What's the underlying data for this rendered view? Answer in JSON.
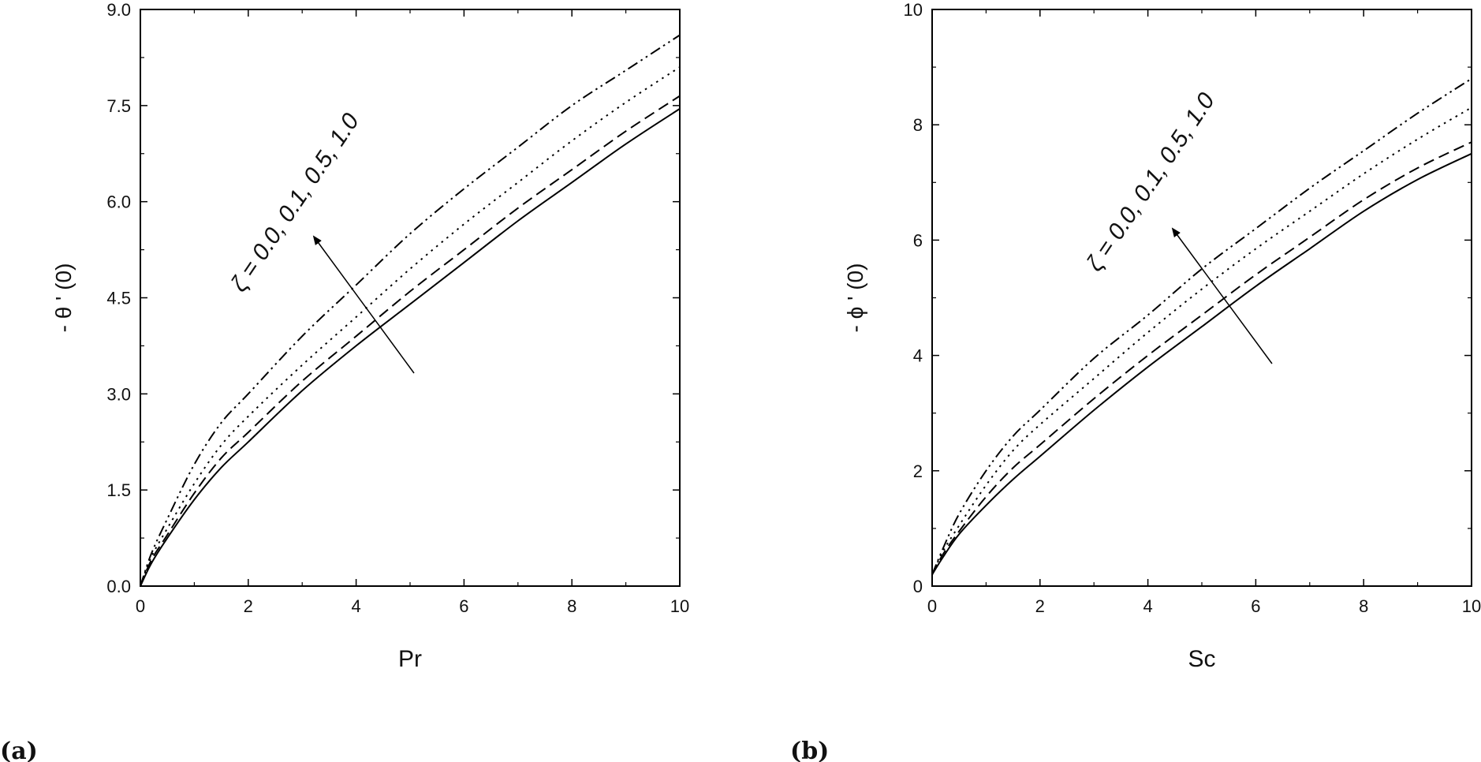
{
  "chart_data": [
    {
      "panel": "(a)",
      "type": "line",
      "xlabel": "Pr",
      "ylabel": "- θ ' (0)",
      "xlim": [
        0,
        10
      ],
      "ylim": [
        0,
        9
      ],
      "xticks": [
        0,
        2,
        4,
        6,
        8,
        10
      ],
      "yticks": [
        0.0,
        1.5,
        3.0,
        4.5,
        6.0,
        7.5,
        9.0
      ],
      "ytick_labels": [
        "0.0",
        "1.5",
        "3.0",
        "4.5",
        "6.0",
        "7.5",
        "9.0"
      ],
      "annotation": "ζ = 0.0, 0.1, 0.5, 1.0",
      "series": [
        {
          "style": "solid",
          "x": [
            0,
            0.2,
            0.5,
            1,
            1.5,
            2,
            3,
            4,
            5,
            6,
            7,
            8,
            9,
            10
          ],
          "y": [
            0.0,
            0.35,
            0.75,
            1.35,
            1.85,
            2.25,
            3.05,
            3.75,
            4.4,
            5.05,
            5.7,
            6.3,
            6.9,
            7.45
          ]
        },
        {
          "style": "dashed",
          "x": [
            0,
            0.2,
            0.5,
            1,
            1.5,
            2,
            3,
            4,
            5,
            6,
            7,
            8,
            9,
            10
          ],
          "y": [
            0.0,
            0.4,
            0.8,
            1.45,
            2.0,
            2.4,
            3.2,
            3.9,
            4.6,
            5.25,
            5.9,
            6.5,
            7.1,
            7.65
          ]
        },
        {
          "style": "dotted",
          "x": [
            0,
            0.2,
            0.5,
            1,
            1.5,
            2,
            3,
            4,
            5,
            6,
            7,
            8,
            9,
            10
          ],
          "y": [
            0.0,
            0.45,
            0.9,
            1.6,
            2.2,
            2.65,
            3.45,
            4.2,
            4.95,
            5.65,
            6.3,
            6.95,
            7.55,
            8.1
          ]
        },
        {
          "style": "dash-dot-dot",
          "x": [
            0,
            0.2,
            0.5,
            1,
            1.5,
            2,
            3,
            4,
            5,
            6,
            7,
            8,
            9,
            10
          ],
          "y": [
            0.0,
            0.5,
            1.05,
            1.9,
            2.55,
            3.0,
            3.9,
            4.7,
            5.5,
            6.2,
            6.85,
            7.5,
            8.05,
            8.6
          ]
        }
      ]
    },
    {
      "panel": "(b)",
      "type": "line",
      "xlabel": "Sc",
      "ylabel": "- ϕ ' (0)",
      "xlim": [
        0,
        10
      ],
      "ylim": [
        0,
        10
      ],
      "xticks": [
        0,
        2,
        4,
        6,
        8,
        10
      ],
      "yticks": [
        0,
        2,
        4,
        6,
        8,
        10
      ],
      "ytick_labels": [
        "0",
        "2",
        "4",
        "6",
        "8",
        "10"
      ],
      "annotation": "ζ = 0.0, 0.1, 0.5, 1.0",
      "series": [
        {
          "style": "solid",
          "x": [
            0,
            0.2,
            0.5,
            1,
            1.5,
            2,
            3,
            4,
            5,
            6,
            7,
            8,
            9,
            10
          ],
          "y": [
            0.2,
            0.5,
            0.9,
            1.4,
            1.85,
            2.25,
            3.05,
            3.8,
            4.5,
            5.2,
            5.85,
            6.5,
            7.05,
            7.5
          ]
        },
        {
          "style": "dashed",
          "x": [
            0,
            0.2,
            0.5,
            1,
            1.5,
            2,
            3,
            4,
            5,
            6,
            7,
            8,
            9,
            10
          ],
          "y": [
            0.2,
            0.55,
            0.95,
            1.55,
            2.05,
            2.45,
            3.25,
            4.0,
            4.7,
            5.4,
            6.05,
            6.7,
            7.25,
            7.7
          ]
        },
        {
          "style": "dotted",
          "x": [
            0,
            0.2,
            0.5,
            1,
            1.5,
            2,
            3,
            4,
            5,
            6,
            7,
            8,
            9,
            10
          ],
          "y": [
            0.2,
            0.6,
            1.05,
            1.75,
            2.35,
            2.8,
            3.6,
            4.4,
            5.15,
            5.85,
            6.5,
            7.15,
            7.75,
            8.3
          ]
        },
        {
          "style": "dash-dot-dot",
          "x": [
            0,
            0.2,
            0.5,
            1,
            1.5,
            2,
            3,
            4,
            5,
            6,
            7,
            8,
            9,
            10
          ],
          "y": [
            0.2,
            0.65,
            1.25,
            2.0,
            2.6,
            3.05,
            3.95,
            4.7,
            5.5,
            6.2,
            6.9,
            7.55,
            8.2,
            8.8
          ]
        }
      ]
    }
  ],
  "panel_tags": [
    "(a)",
    "(b)"
  ],
  "colors": {
    "line": "#000000",
    "axis": "#000000",
    "background": "#ffffff"
  }
}
